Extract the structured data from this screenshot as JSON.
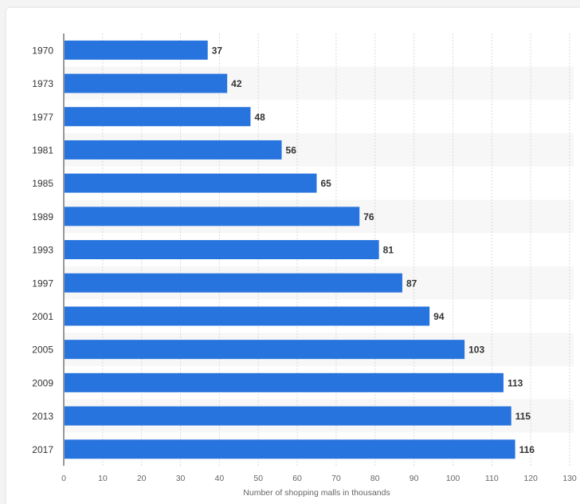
{
  "chart_data": {
    "type": "bar",
    "orientation": "horizontal",
    "categories": [
      "1970",
      "1973",
      "1977",
      "1981",
      "1985",
      "1989",
      "1993",
      "1997",
      "2001",
      "2005",
      "2009",
      "2013",
      "2017"
    ],
    "values": [
      37,
      42,
      48,
      56,
      65,
      76,
      81,
      87,
      94,
      103,
      113,
      115,
      116
    ],
    "title": "",
    "xlabel": "Number of shopping malls in thousands",
    "ylabel": "",
    "xlim": [
      0,
      130
    ],
    "xticks": [
      0,
      10,
      20,
      30,
      40,
      50,
      60,
      70,
      80,
      90,
      100,
      110,
      120,
      130
    ],
    "grid": "vertical dashed",
    "legend": "none",
    "data_labels": true
  },
  "colors": {
    "bar": "#2874de",
    "band": "#f7f7f7",
    "grid": "#d9d9d9",
    "axis": "#333333",
    "tick_text": "#666666",
    "category_text": "#333333",
    "value_text": "#333333"
  }
}
